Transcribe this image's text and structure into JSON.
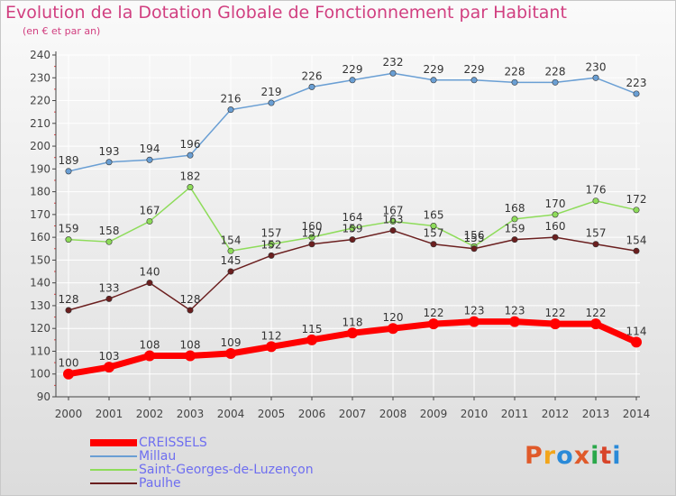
{
  "title": "Evolution de la Dotation Globale de Fonctionnement par Habitant",
  "subtitle": "(en € et par an)",
  "logo": {
    "text": "Proxiti",
    "colors": [
      "#e05a2a",
      "#f2a51a",
      "#2a8ad8",
      "#e05a2a",
      "#2aa84a",
      "#d8452a",
      "#2a8ad8"
    ]
  },
  "chart_data": {
    "type": "line",
    "title": "Evolution de la Dotation Globale de Fonctionnement par Habitant",
    "subtitle": "(en € et par an)",
    "x": [
      "2000",
      "2001",
      "2002",
      "2003",
      "2004",
      "2005",
      "2006",
      "2007",
      "2008",
      "2009",
      "2010",
      "2011",
      "2012",
      "2013",
      "2014"
    ],
    "ylim": [
      90,
      240
    ],
    "yticks": [
      90,
      100,
      110,
      120,
      130,
      140,
      150,
      160,
      170,
      180,
      190,
      200,
      210,
      220,
      230,
      240
    ],
    "grid": true,
    "legend_position": "bottom-left",
    "series": [
      {
        "name": "CREISSELS",
        "color": "#ff0000",
        "values": [
          100,
          103,
          108,
          108,
          109,
          112,
          115,
          118,
          120,
          122,
          123,
          123,
          122,
          122,
          114
        ]
      },
      {
        "name": "Millau",
        "color": "#6a9fd4",
        "values": [
          189,
          193,
          194,
          196,
          216,
          219,
          226,
          229,
          232,
          229,
          229,
          228,
          228,
          230,
          223
        ]
      },
      {
        "name": "Saint-Georges-de-Luzençon",
        "color": "#8edc5a",
        "values": [
          159,
          158,
          167,
          182,
          154,
          157,
          160,
          164,
          167,
          165,
          156,
          168,
          170,
          176,
          172
        ]
      },
      {
        "name": "Paulhe",
        "color": "#6b1f1f",
        "values": [
          128,
          133,
          140,
          128,
          145,
          152,
          157,
          159,
          163,
          157,
          155,
          159,
          160,
          157,
          154
        ]
      }
    ]
  }
}
